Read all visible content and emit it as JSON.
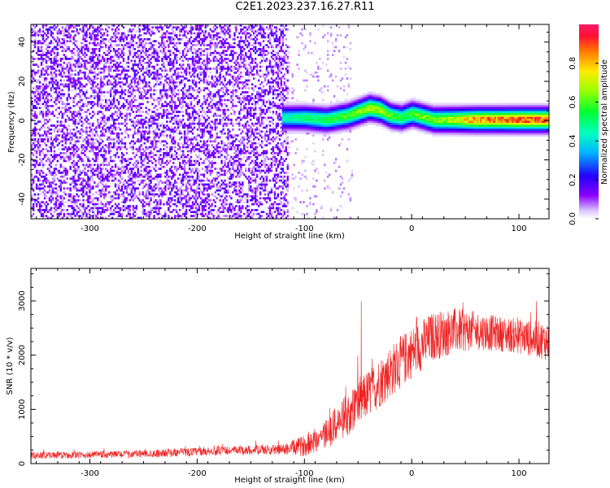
{
  "title": "C2E1.2023.237.16.27.R11",
  "chart_data": [
    {
      "type": "heatmap",
      "title": "",
      "xlabel": "Height of straight line (km)",
      "ylabel": "Frequency (Hz)",
      "xlim": [
        -355,
        128
      ],
      "ylim": [
        -50,
        49
      ],
      "xticks": [
        -300,
        -200,
        -100,
        0,
        100
      ],
      "yticks": [
        -40,
        -20,
        0,
        20,
        40
      ],
      "grid": false,
      "colorbar": {
        "label": "Normalized spectral amplitude",
        "range": [
          0,
          1
        ],
        "ticks": [
          0.0,
          0.2,
          0.4,
          0.6,
          0.8
        ],
        "colormap": "gist_rainbow (violet to red)"
      },
      "signal_ridge": {
        "description_x_km": [
          -120,
          -100,
          -80,
          -60,
          -40,
          -30,
          -20,
          -10,
          0,
          20,
          40,
          60,
          80,
          100,
          128
        ],
        "frequency_hz": [
          1,
          1,
          0,
          2,
          6,
          5,
          2,
          1,
          3,
          0,
          0,
          0,
          0,
          0,
          0
        ],
        "peak_amplitude": [
          0.45,
          0.5,
          0.55,
          0.6,
          0.7,
          0.7,
          0.6,
          0.55,
          0.6,
          0.65,
          0.7,
          0.85,
          0.85,
          0.9,
          0.9
        ]
      },
      "noise_region_x_km": [
        -355,
        -115
      ]
    },
    {
      "type": "line",
      "title": "",
      "xlabel": "Height of straight line (km)",
      "ylabel": "SNR (10 * v/v)",
      "xlim": [
        -355,
        128
      ],
      "ylim": [
        0,
        3600
      ],
      "xticks": [
        -300,
        -200,
        -100,
        0,
        100
      ],
      "yticks": [
        0,
        1000,
        2000,
        3000
      ],
      "grid": false,
      "series": [
        {
          "color": "#ee2222",
          "x": [
            -355,
            -300,
            -250,
            -200,
            -150,
            -120,
            -100,
            -80,
            -60,
            -40,
            -20,
            0,
            20,
            40,
            60,
            80,
            100,
            128
          ],
          "y": [
            150,
            160,
            180,
            220,
            250,
            260,
            330,
            550,
            900,
            1300,
            1700,
            2050,
            2350,
            2450,
            2450,
            2400,
            2350,
            2250
          ],
          "spread": [
            100,
            100,
            110,
            120,
            130,
            150,
            300,
            450,
            600,
            700,
            750,
            750,
            700,
            650,
            550,
            500,
            500,
            550
          ]
        }
      ]
    }
  ]
}
